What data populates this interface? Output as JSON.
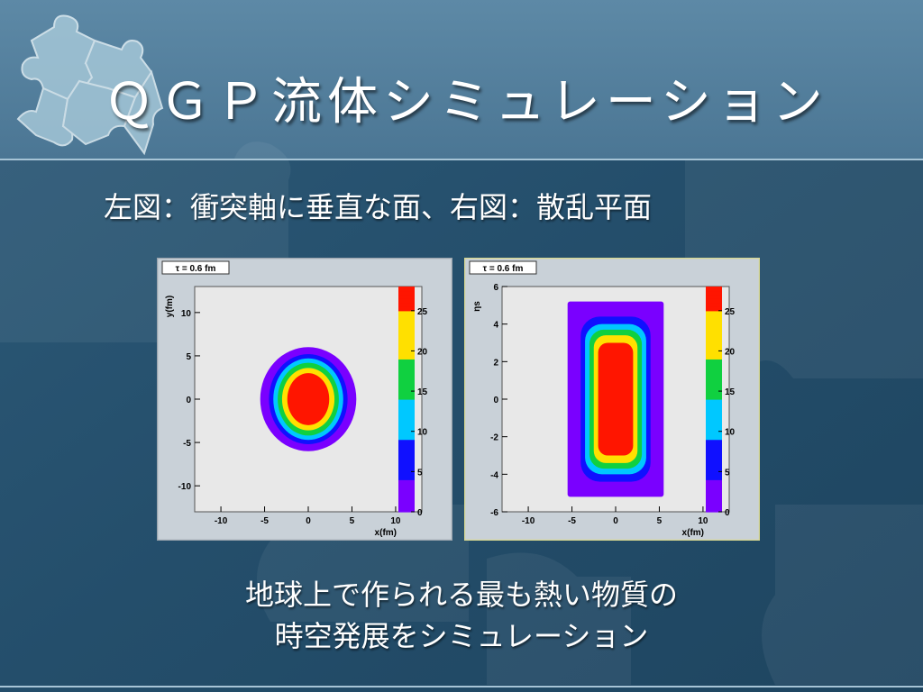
{
  "slide": {
    "title": "ＱＧＰ流体シミュレーション",
    "subtitle": "左図：衝突軸に垂直な面、右図：散乱平面",
    "bottom_lines": [
      "地球上で作られる最も熱い物質の",
      "時空発展をシミュレーション"
    ]
  },
  "chart_data": [
    {
      "type": "heatmap",
      "title": "τ = 0.6 fm",
      "xlabel": "x(fm)",
      "ylabel": "y(fm)",
      "xlim": [
        -13,
        13
      ],
      "ylim": [
        -13,
        13
      ],
      "x_ticks": [
        -10,
        -5,
        0,
        5,
        10
      ],
      "y_ticks": [
        -10,
        -5,
        0,
        5,
        10
      ],
      "colorbar_ticks": [
        0,
        5,
        10,
        15,
        20,
        25
      ],
      "colorbar_range": [
        0,
        28
      ],
      "colors": [
        "#6a00ff",
        "#0000ff",
        "#00b4ff",
        "#00d060",
        "#ffe000",
        "#ff2000"
      ],
      "regions": [
        {
          "shape": "ellipse",
          "cx": 0,
          "cy": 0,
          "rx": 5.5,
          "ry": 6.0,
          "level": 1
        },
        {
          "shape": "ellipse",
          "cx": 0,
          "cy": 0,
          "rx": 4.5,
          "ry": 5.2,
          "level": 4
        },
        {
          "shape": "ellipse",
          "cx": 0,
          "cy": 0,
          "rx": 4.0,
          "ry": 4.7,
          "level": 9
        },
        {
          "shape": "ellipse",
          "cx": 0,
          "cy": 0,
          "rx": 3.5,
          "ry": 4.2,
          "level": 14
        },
        {
          "shape": "ellipse",
          "cx": 0,
          "cy": 0,
          "rx": 3.0,
          "ry": 3.6,
          "level": 19
        },
        {
          "shape": "ellipse",
          "cx": 0,
          "cy": 0,
          "rx": 2.4,
          "ry": 3.0,
          "level": 25
        }
      ]
    },
    {
      "type": "heatmap",
      "title": "τ = 0.6 fm",
      "xlabel": "x(fm)",
      "ylabel": "ηs",
      "xlim": [
        -13,
        13
      ],
      "ylim": [
        -6,
        6
      ],
      "x_ticks": [
        -10,
        -5,
        0,
        5,
        10
      ],
      "y_ticks": [
        -6,
        -4,
        -2,
        0,
        2,
        4,
        6
      ],
      "colorbar_ticks": [
        0,
        5,
        10,
        15,
        20,
        25
      ],
      "colorbar_range": [
        0,
        28
      ],
      "colors": [
        "#6a00ff",
        "#0000ff",
        "#00b4ff",
        "#00d060",
        "#ffe000",
        "#ff2000"
      ],
      "regions": [
        {
          "shape": "rect",
          "cx": 0,
          "cy": 0,
          "rx": 5.5,
          "ry": 5.2,
          "level": 1
        },
        {
          "shape": "rect",
          "cx": 0,
          "cy": 0,
          "rx": 4.0,
          "ry": 4.4,
          "level": 4
        },
        {
          "shape": "rect",
          "cx": 0,
          "cy": 0,
          "rx": 3.5,
          "ry": 4.0,
          "level": 9
        },
        {
          "shape": "rect",
          "cx": 0,
          "cy": 0,
          "rx": 3.0,
          "ry": 3.7,
          "level": 14
        },
        {
          "shape": "rect",
          "cx": 0,
          "cy": 0,
          "rx": 2.5,
          "ry": 3.4,
          "level": 19
        },
        {
          "shape": "rect",
          "cx": 0,
          "cy": 0,
          "rx": 2.0,
          "ry": 3.0,
          "level": 25
        }
      ]
    }
  ]
}
